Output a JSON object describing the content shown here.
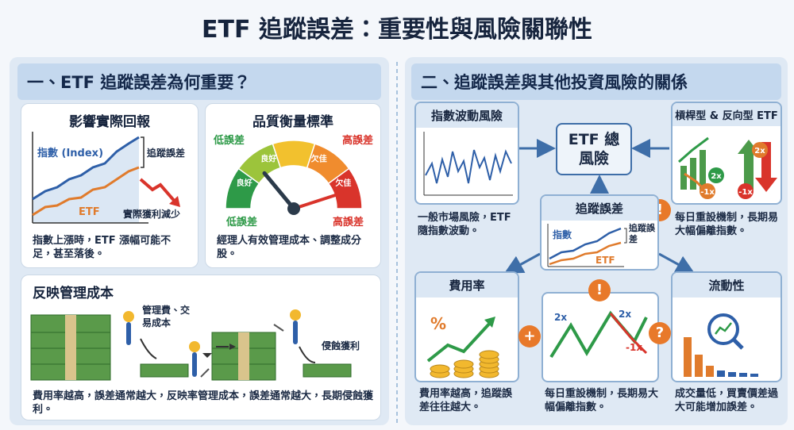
{
  "title": "ETF 追蹤誤差：重要性與風險關聯性",
  "left": {
    "heading": "一、ETF 追蹤誤差為何重要？",
    "impact": {
      "title": "影響實際回報",
      "index_label": "指數 (Index)",
      "etf_label": "ETF",
      "gap_label": "追蹤誤差",
      "loss_label": "實際獲利減少",
      "caption": "指數上漲時，ETF 漲幅可能不足，甚至落後。"
    },
    "quality": {
      "title": "品質衡量標準",
      "low_top": "低誤差",
      "high_top": "高誤差",
      "zones": [
        "良好",
        "良好",
        "欠佳",
        "欠佳"
      ],
      "low_bottom": "低誤差",
      "high_bottom": "高誤差",
      "caption": "經理人有效管理成本、調整成分股。"
    },
    "cost": {
      "title": "反映管理成本",
      "fee_label": "管理費、交易成本",
      "erosion_label": "侵蝕獲利",
      "caption": "費用率越高，誤差通常越大，反映率管理成本，誤差通常越大，長期侵蝕獲利。"
    }
  },
  "right": {
    "heading": "二、追蹤誤差與其他投資風險的關係",
    "center": "ETF 總風險",
    "index_risk": {
      "title": "指數波動風險",
      "caption": "一般市場風險，ETF 隨指數波動。"
    },
    "leveraged": {
      "title": "槓桿型 & 反向型 ETF",
      "labels": [
        "2x",
        "2x",
        "-1x",
        "-1x"
      ],
      "badge": "!",
      "caption": "每日重設機制，長期易大幅偏離指數。"
    },
    "tracking": {
      "title": "追蹤誤差",
      "index_label": "指數",
      "gap_label": "追蹤誤差",
      "etf_label": "ETF"
    },
    "expense": {
      "title": "費用率",
      "percent": "%",
      "badge": "+",
      "caption": "費用率越高，追蹤誤差往往越大。"
    },
    "daily_reset": {
      "labels": [
        "2x",
        "2x",
        "-1x"
      ],
      "badge": "!",
      "caption": "每日重設機制，長期易大幅偏離指數。"
    },
    "liquidity": {
      "title": "流動性",
      "badge": "?",
      "caption": "成交量低，買賣價差過大可能增加誤差。"
    }
  }
}
